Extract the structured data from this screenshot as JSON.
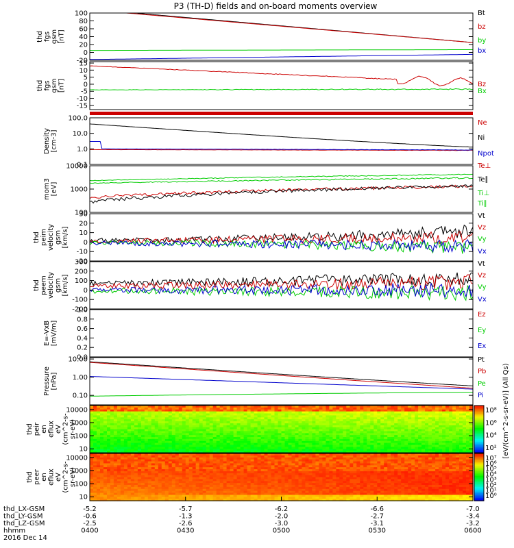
{
  "title": "P3 (TH-D) fields and on-board moments overview",
  "colors": {
    "black": "#000000",
    "red": "#cc0000",
    "green": "#00cc00",
    "blue": "#0000cc",
    "frame": "#000000"
  },
  "chart_data": [
    {
      "type": "line",
      "ylabel": [
        "thd",
        "fgs",
        "gsm",
        "[nT]"
      ],
      "yticks": [
        "100",
        "80",
        "60",
        "40",
        "20",
        "0",
        "-20"
      ],
      "ylim": [
        -20,
        100
      ],
      "series": [
        {
          "name": "Bt",
          "color": "black"
        },
        {
          "name": "bz",
          "color": "red"
        },
        {
          "name": "by",
          "color": "green"
        },
        {
          "name": "bx",
          "color": "blue"
        }
      ]
    },
    {
      "type": "line",
      "ylabel": [
        "thd",
        "fgs",
        "gsm",
        "[nT]"
      ],
      "yticks": [
        "15",
        "10",
        "5",
        "0",
        "-5",
        "-10",
        "-15"
      ],
      "ylim": [
        -18,
        16
      ],
      "series": [
        {
          "name": "Bz",
          "color": "red"
        },
        {
          "name": "Bx",
          "color": "green"
        }
      ]
    },
    {
      "type": "line",
      "ylabel": [
        "Density",
        "[cm-3]"
      ],
      "yticks": [
        "100.0",
        "10.0",
        "1.0",
        "0.1"
      ],
      "ylim": [
        0.1,
        100
      ],
      "log": true,
      "series": [
        {
          "name": "Ne",
          "color": "red"
        },
        {
          "name": "Ni",
          "color": "black"
        },
        {
          "name": "Npot",
          "color": "blue"
        }
      ]
    },
    {
      "type": "line",
      "ylabel": [
        "mom3",
        "[eV]"
      ],
      "yticks": [
        "10000",
        "1000",
        "100"
      ],
      "ylim": [
        100,
        10000
      ],
      "log": true,
      "series": [
        {
          "name": "Te⊥",
          "color": "red"
        },
        {
          "name": "Te∥",
          "color": "black"
        },
        {
          "name": "Ti⊥",
          "color": "green"
        },
        {
          "name": "Ti∥",
          "color": "green"
        }
      ]
    },
    {
      "type": "line",
      "ylabel": [
        "thd",
        "peim",
        "velocity",
        "gsm",
        "[km/s]"
      ],
      "yticks": [
        "30",
        "20",
        "10",
        "0",
        "-10",
        "-20"
      ],
      "ylim": [
        -20,
        30
      ],
      "series": [
        {
          "name": "Vt",
          "color": "black"
        },
        {
          "name": "Vz",
          "color": "red"
        },
        {
          "name": "Vy",
          "color": "green"
        },
        {
          "name": "Vx",
          "color": "blue"
        }
      ]
    },
    {
      "type": "line",
      "ylabel": [
        "thd",
        "peem",
        "velocity",
        "gsm",
        "[km/s]"
      ],
      "yticks": [
        "300",
        "200",
        "100",
        "0",
        "-100",
        "-200"
      ],
      "ylim": [
        -200,
        300
      ],
      "series": [
        {
          "name": "Vt",
          "color": "black"
        },
        {
          "name": "Vz",
          "color": "red"
        },
        {
          "name": "Vy",
          "color": "green"
        },
        {
          "name": "Vx",
          "color": "blue"
        }
      ]
    },
    {
      "type": "line",
      "ylabel": [
        "E=-VxB",
        "[mV/m]"
      ],
      "yticks": [
        "1.0",
        "0.8",
        "0.6",
        "0.4",
        "0.2",
        "0.0"
      ],
      "ylim": [
        0,
        1
      ],
      "series": [
        {
          "name": "Ez",
          "color": "red"
        },
        {
          "name": "Ey",
          "color": "green"
        },
        {
          "name": "Ex",
          "color": "blue"
        }
      ]
    },
    {
      "type": "line",
      "ylabel": [
        "Pressure",
        "[nPa]"
      ],
      "yticks": [
        "10.00",
        "1.00",
        "0.10"
      ],
      "ylim": [
        0.03,
        12
      ],
      "log": true,
      "series": [
        {
          "name": "Pt",
          "color": "black"
        },
        {
          "name": "Pb",
          "color": "red"
        },
        {
          "name": "Pe",
          "color": "green"
        },
        {
          "name": "Pi",
          "color": "blue"
        }
      ]
    },
    {
      "type": "heatmap",
      "ylabel": [
        "thd",
        "peir",
        "en",
        "eflux",
        "eV",
        "(cm^2-s-",
        "sr-eV)"
      ],
      "yticks": [
        "10000",
        "1000",
        "100",
        "10"
      ],
      "ylim": [
        5,
        20000
      ],
      "log": true,
      "colorbar_ticks": [
        "10⁸",
        "10⁶",
        "10⁴",
        "10²"
      ]
    },
    {
      "type": "heatmap",
      "ylabel": [
        "thd",
        "peer",
        "en",
        "eflux",
        "eV",
        "(cm^2-s-",
        "sr-eV)"
      ],
      "yticks": [
        "10000",
        "1000",
        "100",
        "10"
      ],
      "ylim": [
        5,
        20000
      ],
      "log": true,
      "colorbar_ticks": [
        "10⁷",
        "10⁶",
        "10⁵",
        "10⁴",
        "10³",
        "10²",
        "10¹",
        "10⁰"
      ]
    }
  ],
  "colorbar_label": "[eV/(cm^2-s-sr-eV)] (All Qs)",
  "x_axis": {
    "rows": [
      {
        "label": "thd_LX-GSM",
        "values": [
          "-5.2",
          "-5.7",
          "-6.2",
          "-6.6",
          "-7.0"
        ]
      },
      {
        "label": "thd_LY-GSM",
        "values": [
          "-0.6",
          "-1.3",
          "-2.0",
          "-2.7",
          "-3.4"
        ]
      },
      {
        "label": "thd_LZ-GSM",
        "values": [
          "-2.5",
          "-2.6",
          "-3.0",
          "-3.1",
          "-3.2"
        ]
      },
      {
        "label": "hhmm",
        "values": [
          "0400",
          "0430",
          "0500",
          "0530",
          "0600"
        ]
      }
    ],
    "date": "2016 Dec 14"
  }
}
